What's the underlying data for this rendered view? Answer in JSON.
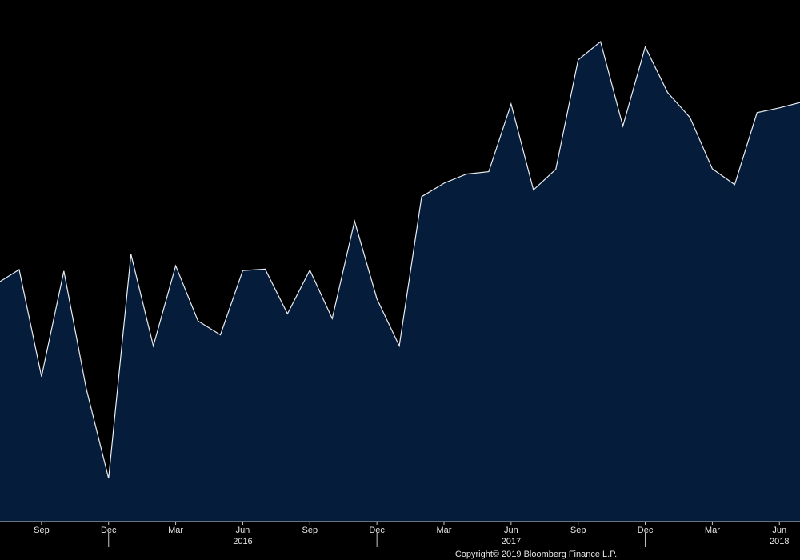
{
  "chart_data": {
    "type": "area",
    "title": "",
    "xlabel": "",
    "ylabel": "",
    "grid": false,
    "legend": "none",
    "y_axis_shown": false,
    "x_range": [
      "2015-07",
      "2018-07"
    ],
    "y_range_relative": [
      0,
      100
    ],
    "series": [
      {
        "color_line": "#e8ecf2",
        "color_fill": "#051d3a",
        "x": [
          "2015-07",
          "2015-08",
          "2015-09",
          "2015-10",
          "2015-11",
          "2015-12",
          "2016-01",
          "2016-02",
          "2016-03",
          "2016-04",
          "2016-05",
          "2016-06",
          "2016-07",
          "2016-08",
          "2016-09",
          "2016-10",
          "2016-11",
          "2016-12",
          "2017-01",
          "2017-02",
          "2017-03",
          "2017-04",
          "2017-05",
          "2017-06",
          "2017-07",
          "2017-08",
          "2017-09",
          "2017-10",
          "2017-11",
          "2017-12",
          "2018-01",
          "2018-02",
          "2018-03",
          "2018-04",
          "2018-05",
          "2018-06",
          "2018-07"
        ],
        "values": [
          49.6,
          52.5,
          30.2,
          52.2,
          27.7,
          9.0,
          55.7,
          36.6,
          53.3,
          41.8,
          38.9,
          52.3,
          52.6,
          43.3,
          52.4,
          42.3,
          62.6,
          46.4,
          36.6,
          67.7,
          70.5,
          72.4,
          72.9,
          87.0,
          69.1,
          73.4,
          96.2,
          100.0,
          82.4,
          98.9,
          89.4,
          84.2,
          73.5,
          70.2,
          85.2,
          86.2,
          87.4
        ]
      }
    ],
    "tick_labels": [
      {
        "label": "Sep",
        "x": "2015-09"
      },
      {
        "label": "Dec",
        "x": "2015-12"
      },
      {
        "label": "Mar",
        "x": "2016-03"
      },
      {
        "label": "Jun",
        "x": "2016-06"
      },
      {
        "label": "Sep",
        "x": "2016-09"
      },
      {
        "label": "Dec",
        "x": "2016-12"
      },
      {
        "label": "Mar",
        "x": "2017-03"
      },
      {
        "label": "Jun",
        "x": "2017-06"
      },
      {
        "label": "Sep",
        "x": "2017-09"
      },
      {
        "label": "Dec",
        "x": "2017-12"
      },
      {
        "label": "Mar",
        "x": "2018-03"
      },
      {
        "label": "Jun",
        "x": "2018-06"
      }
    ],
    "year_labels": [
      {
        "label": "2016",
        "x": "2016-06"
      },
      {
        "label": "2017",
        "x": "2017-06"
      },
      {
        "label": "2018",
        "x": "2018-06"
      }
    ],
    "year_separators": [
      "2015-12",
      "2016-12",
      "2017-12"
    ]
  },
  "footer": {
    "copyright": "Copyright© 2019 Bloomberg Finance L.P."
  },
  "colors": {
    "background": "#000000",
    "axis": "#c8c8c8",
    "text": "#e6e6e6"
  }
}
